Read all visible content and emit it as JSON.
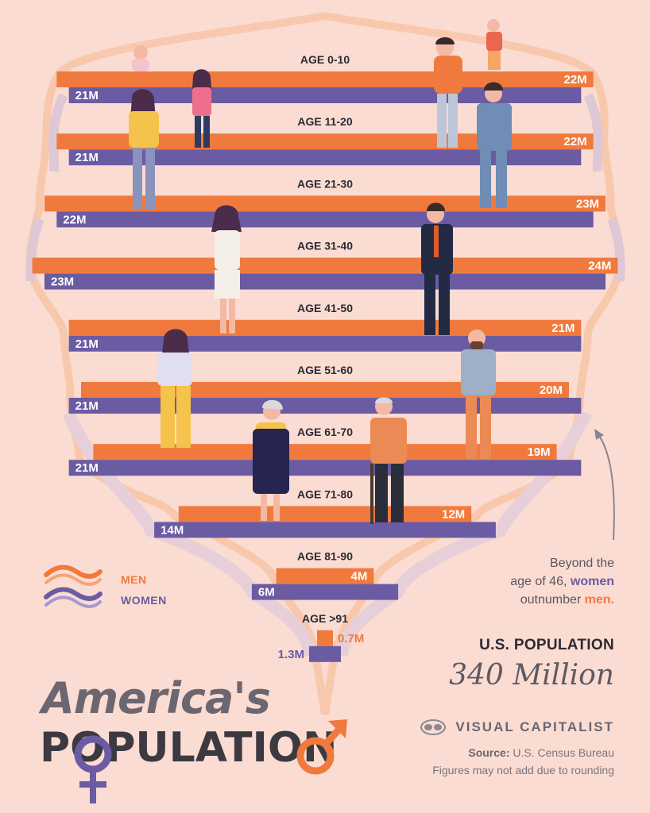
{
  "title": {
    "line1": "America's",
    "line2": "POPULATION"
  },
  "legend": {
    "men": "MEN",
    "women": "WOMEN"
  },
  "annotation": {
    "pre": "Beyond the",
    "mid": "age of 46, ",
    "women": "women",
    "post": "outnumber ",
    "men": "men."
  },
  "summary": {
    "label": "U.S. POPULATION",
    "value": "340 Million"
  },
  "brand": "VISUAL CAPITALIST",
  "source": {
    "label": "Source:",
    "text": "U.S. Census Bureau"
  },
  "footnote": "Figures may not add due to rounding",
  "colors": {
    "background": "#fbdcd2",
    "men": "#f07a3e",
    "women": "#6b5ba3"
  },
  "chart_data": {
    "type": "bar",
    "title": "America's Population",
    "unit": "Million",
    "categories": [
      "AGE 0-10",
      "AGE 11-20",
      "AGE 21-30",
      "AGE 31-40",
      "AGE 41-50",
      "AGE 51-60",
      "AGE 61-70",
      "AGE 71-80",
      "AGE 81-90",
      "AGE >91"
    ],
    "series": [
      {
        "name": "MEN",
        "values": [
          22,
          22,
          23,
          24,
          21,
          20,
          19,
          12,
          4,
          0.7
        ],
        "labels": [
          "22M",
          "22M",
          "23M",
          "24M",
          "21M",
          "20M",
          "19M",
          "12M",
          "4M",
          "0.7M"
        ]
      },
      {
        "name": "WOMEN",
        "values": [
          21,
          21,
          22,
          23,
          21,
          21,
          21,
          14,
          6,
          1.3
        ],
        "labels": [
          "21M",
          "21M",
          "22M",
          "23M",
          "21M",
          "21M",
          "21M",
          "14M",
          "6M",
          "1.3M"
        ]
      }
    ]
  }
}
